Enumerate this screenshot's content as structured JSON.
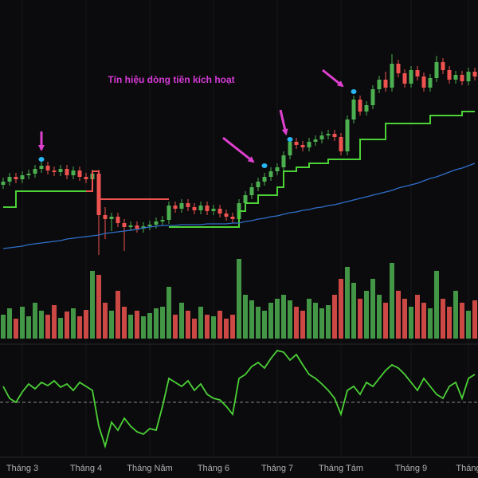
{
  "chart_data": [
    {
      "type": "candlestick",
      "annotation": "Tín hiệu dòng tiền kích hoạt",
      "xlim": [
        -0.5,
        74.5
      ],
      "ylim": [
        0,
        340
      ],
      "up_color": "#4caf50",
      "down_color": "#ef5350",
      "open": [
        108,
        112,
        118,
        115,
        120,
        122,
        128,
        132,
        126,
        124,
        128,
        120,
        126,
        118,
        115,
        122,
        70,
        65,
        68,
        60,
        55,
        57,
        53,
        56,
        58,
        62,
        64,
        82,
        78,
        85,
        80,
        76,
        82,
        75,
        78,
        72,
        68,
        65,
        85,
        95,
        105,
        112,
        118,
        125,
        130,
        145,
        162,
        158,
        155,
        162,
        165,
        170,
        172,
        168,
        150,
        190,
        215,
        200,
        208,
        228,
        240,
        230,
        260,
        248,
        235,
        252,
        244,
        230,
        242,
        262,
        252,
        240,
        246,
        238,
        250
      ],
      "high": [
        117,
        123,
        123,
        125,
        127,
        133,
        137,
        137,
        131,
        133,
        133,
        131,
        131,
        123,
        127,
        127,
        80,
        73,
        73,
        65,
        62,
        62,
        61,
        63,
        67,
        69,
        87,
        87,
        90,
        90,
        85,
        87,
        87,
        83,
        83,
        77,
        73,
        90,
        100,
        110,
        117,
        123,
        130,
        135,
        150,
        167,
        167,
        163,
        167,
        170,
        175,
        177,
        177,
        173,
        195,
        220,
        220,
        213,
        233,
        245,
        250,
        272,
        265,
        253,
        257,
        257,
        249,
        247,
        270,
        267,
        257,
        251,
        251,
        255,
        255
      ],
      "low": [
        103,
        107,
        110,
        110,
        115,
        117,
        123,
        121,
        119,
        119,
        115,
        115,
        113,
        110,
        110,
        20,
        40,
        50,
        55,
        25,
        50,
        48,
        48,
        51,
        53,
        57,
        59,
        73,
        73,
        75,
        71,
        71,
        70,
        70,
        67,
        63,
        60,
        60,
        80,
        90,
        100,
        107,
        113,
        120,
        125,
        140,
        153,
        150,
        150,
        157,
        160,
        165,
        163,
        145,
        145,
        185,
        195,
        195,
        203,
        223,
        225,
        225,
        243,
        230,
        230,
        239,
        225,
        225,
        237,
        247,
        235,
        235,
        233,
        233,
        239
      ],
      "close": [
        112,
        118,
        115,
        120,
        122,
        128,
        132,
        126,
        124,
        128,
        120,
        126,
        118,
        115,
        122,
        70,
        65,
        68,
        60,
        55,
        57,
        53,
        56,
        58,
        62,
        64,
        82,
        78,
        85,
        80,
        76,
        82,
        75,
        78,
        72,
        68,
        65,
        85,
        95,
        105,
        112,
        118,
        125,
        130,
        145,
        162,
        158,
        155,
        162,
        165,
        170,
        172,
        168,
        150,
        190,
        215,
        200,
        208,
        228,
        240,
        230,
        260,
        248,
        235,
        252,
        244,
        230,
        242,
        262,
        252,
        240,
        246,
        238,
        250,
        244
      ],
      "overlays": [
        {
          "color": "#4cd137",
          "step": true,
          "values": [
            80,
            80,
            100,
            100,
            100,
            100,
            100,
            100,
            100,
            100,
            100,
            100,
            100,
            100,
            null,
            null,
            null,
            null,
            null,
            null,
            null,
            null,
            null,
            null,
            null,
            null,
            55,
            55,
            55,
            55,
            55,
            55,
            55,
            55,
            55,
            55,
            55,
            75,
            85,
            85,
            95,
            95,
            95,
            105,
            125,
            125,
            130,
            130,
            135,
            135,
            135,
            140,
            140,
            140,
            140,
            140,
            165,
            165,
            165,
            165,
            185,
            185,
            185,
            185,
            185,
            185,
            185,
            195,
            195,
            195,
            195,
            195,
            200,
            200,
            200
          ]
        },
        {
          "color": "#ef5350",
          "step": true,
          "values": [
            null,
            null,
            null,
            null,
            null,
            null,
            null,
            null,
            null,
            null,
            null,
            null,
            null,
            100,
            125,
            90,
            90,
            90,
            90,
            90,
            90,
            90,
            90,
            90,
            90,
            90,
            90,
            null,
            null,
            null,
            null,
            null,
            null,
            null,
            null,
            null,
            null,
            null,
            null,
            null,
            null,
            null,
            null,
            null,
            null,
            null,
            null,
            null,
            null,
            null,
            null,
            null,
            null,
            null,
            null,
            null,
            null,
            null,
            null,
            null,
            null,
            null,
            null,
            null,
            null,
            null,
            null,
            null,
            null,
            null,
            null,
            null,
            null,
            null,
            null
          ]
        },
        {
          "color": "#2f6fc9",
          "step": false,
          "values": [
            28,
            29,
            30,
            31,
            33,
            34,
            35,
            36,
            37,
            38,
            40,
            41,
            42,
            43,
            44,
            45,
            47,
            48,
            49,
            50,
            51,
            52,
            54,
            55,
            56,
            57,
            57,
            57,
            58,
            58,
            58,
            58,
            59,
            59,
            59,
            59,
            60,
            60,
            62,
            63,
            65,
            66,
            68,
            69,
            71,
            73,
            74,
            76,
            77,
            79,
            80,
            82,
            83,
            85,
            87,
            89,
            91,
            93,
            95,
            97,
            99,
            101,
            104,
            106,
            108,
            110,
            113,
            116,
            118,
            121,
            124,
            127,
            129,
            132,
            135
          ]
        }
      ],
      "markers": {
        "color": "#29b6f6",
        "x": [
          6,
          41,
          45,
          55
        ],
        "values": [
          140,
          132,
          165,
          225
        ]
      }
    },
    {
      "type": "bar",
      "xlim": [
        -0.5,
        74.5
      ],
      "ylim": [
        0,
        100
      ],
      "values": [
        30,
        38,
        25,
        40,
        28,
        45,
        35,
        30,
        42,
        26,
        34,
        38,
        28,
        36,
        85,
        80,
        45,
        35,
        60,
        40,
        30,
        35,
        28,
        32,
        38,
        40,
        65,
        30,
        45,
        35,
        25,
        40,
        30,
        28,
        35,
        25,
        30,
        100,
        55,
        48,
        40,
        35,
        45,
        50,
        55,
        48,
        40,
        35,
        50,
        45,
        38,
        42,
        55,
        75,
        90,
        70,
        50,
        60,
        75,
        55,
        45,
        95,
        60,
        50,
        40,
        55,
        45,
        38,
        85,
        50,
        40,
        60,
        45,
        35,
        48
      ]
    },
    {
      "type": "line",
      "xlim": [
        -0.5,
        74.5
      ],
      "ylim": [
        0,
        130
      ],
      "color": "#4cd137",
      "reference": 65,
      "values": [
        85,
        70,
        65,
        78,
        88,
        82,
        90,
        86,
        92,
        84,
        88,
        80,
        90,
        85,
        80,
        35,
        10,
        40,
        30,
        45,
        35,
        28,
        25,
        32,
        30,
        60,
        95,
        90,
        85,
        92,
        80,
        88,
        75,
        70,
        68,
        60,
        50,
        95,
        100,
        110,
        115,
        108,
        120,
        130,
        128,
        118,
        125,
        112,
        100,
        95,
        88,
        80,
        70,
        50,
        80,
        85,
        75,
        90,
        85,
        95,
        105,
        112,
        108,
        100,
        90,
        80,
        95,
        85,
        75,
        70,
        85,
        90,
        70,
        95,
        100
      ],
      "xticks": [
        {
          "value": 3,
          "label": "Tháng 3"
        },
        {
          "value": 13,
          "label": "Tháng 4"
        },
        {
          "value": 23,
          "label": "Tháng Năm"
        },
        {
          "value": 33,
          "label": "Tháng 6"
        },
        {
          "value": 43,
          "label": "Tháng 7"
        },
        {
          "value": 53,
          "label": "Tháng Tám"
        },
        {
          "value": 64,
          "label": "Tháng 9"
        },
        {
          "value": 73,
          "label": "Tháng"
        }
      ]
    }
  ]
}
